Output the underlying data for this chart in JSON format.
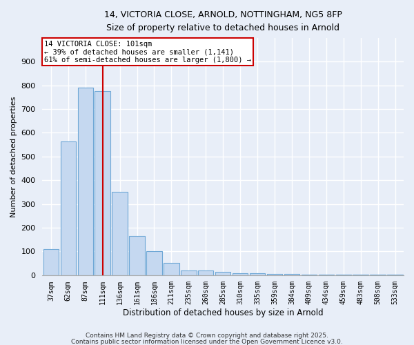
{
  "title1": "14, VICTORIA CLOSE, ARNOLD, NOTTINGHAM, NG5 8FP",
  "title2": "Size of property relative to detached houses in Arnold",
  "xlabel": "Distribution of detached houses by size in Arnold",
  "ylabel": "Number of detached properties",
  "categories": [
    "37sqm",
    "62sqm",
    "87sqm",
    "111sqm",
    "136sqm",
    "161sqm",
    "186sqm",
    "211sqm",
    "235sqm",
    "260sqm",
    "285sqm",
    "310sqm",
    "335sqm",
    "359sqm",
    "384sqm",
    "409sqm",
    "434sqm",
    "459sqm",
    "483sqm",
    "508sqm",
    "533sqm"
  ],
  "values": [
    110,
    565,
    790,
    775,
    350,
    165,
    100,
    50,
    20,
    18,
    13,
    8,
    8,
    5,
    4,
    1,
    1,
    1,
    1,
    1,
    1
  ],
  "bar_color": "#c5d8f0",
  "bar_edge_color": "#6fa8d6",
  "background_color": "#e8eef8",
  "grid_color": "#ffffff",
  "red_line_index": 3,
  "red_line_color": "#cc0000",
  "annotation_text": "14 VICTORIA CLOSE: 101sqm\n← 39% of detached houses are smaller (1,141)\n61% of semi-detached houses are larger (1,800) →",
  "annotation_box_color": "#ffffff",
  "annotation_box_edge_color": "#cc0000",
  "ylim": [
    0,
    1000
  ],
  "yticks": [
    0,
    100,
    200,
    300,
    400,
    500,
    600,
    700,
    800,
    900
  ],
  "footnote1": "Contains HM Land Registry data © Crown copyright and database right 2025.",
  "footnote2": "Contains public sector information licensed under the Open Government Licence v3.0."
}
